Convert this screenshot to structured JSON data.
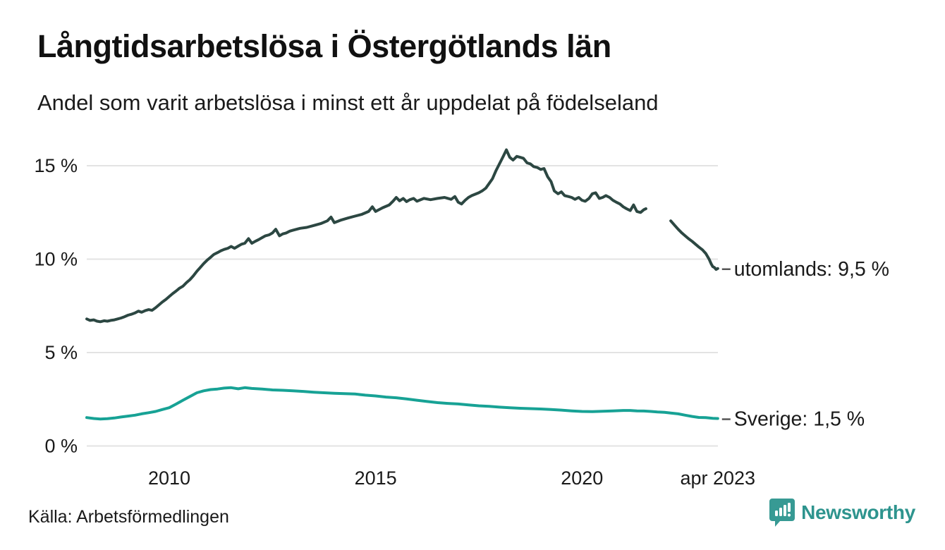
{
  "header": {
    "title": "Långtidsarbetslösa i Östergötlands län",
    "subtitle": "Andel som varit arbetslösa i minst ett år uppdelat på födelseland"
  },
  "footer": {
    "source": "Källa: Arbetsförmedlingen",
    "brand": "Newsworthy"
  },
  "colors": {
    "utomlands_line": "#2c4742",
    "sverige_line": "#17a295",
    "grid": "#e3e3e3",
    "axis_text": "#1a1a1a",
    "label_dash": "#555555",
    "brand_teal": "#379a94"
  },
  "chart_data": {
    "type": "line",
    "title": "Långtidsarbetslösa i Östergötlands län",
    "subtitle": "Andel som varit arbetslösa i minst ett år uppdelat på födelseland",
    "xlabel": "",
    "ylabel": "",
    "xlim": [
      2008.0,
      2023.33
    ],
    "ylim": [
      0,
      16.5
    ],
    "grid": true,
    "legend_position": "right-end-labels",
    "y_ticks": [
      {
        "value": 0,
        "label": "0 %"
      },
      {
        "value": 5,
        "label": "5 %"
      },
      {
        "value": 10,
        "label": "10 %"
      },
      {
        "value": 15,
        "label": "15 %"
      }
    ],
    "x_ticks": [
      {
        "t": 2010.0,
        "label": "2010"
      },
      {
        "t": 2015.0,
        "label": "2015"
      },
      {
        "t": 2020.0,
        "label": "2020"
      },
      {
        "t": 2023.29,
        "label": "apr 2023"
      }
    ],
    "series": [
      {
        "name": "utomlands",
        "end_label": "utomlands: 9,5 %",
        "end_value_pct": 9.5,
        "color": "#2c4742",
        "segments": [
          [
            [
              2008.0,
              6.8
            ],
            [
              2008.08,
              6.72
            ],
            [
              2008.17,
              6.75
            ],
            [
              2008.25,
              6.68
            ],
            [
              2008.33,
              6.65
            ],
            [
              2008.42,
              6.7
            ],
            [
              2008.5,
              6.68
            ],
            [
              2008.58,
              6.72
            ],
            [
              2008.67,
              6.75
            ],
            [
              2008.75,
              6.8
            ],
            [
              2008.83,
              6.85
            ],
            [
              2008.92,
              6.92
            ],
            [
              2009.0,
              7.0
            ],
            [
              2009.08,
              7.05
            ],
            [
              2009.17,
              7.12
            ],
            [
              2009.25,
              7.22
            ],
            [
              2009.33,
              7.16
            ],
            [
              2009.42,
              7.25
            ],
            [
              2009.5,
              7.3
            ],
            [
              2009.58,
              7.26
            ],
            [
              2009.67,
              7.4
            ],
            [
              2009.75,
              7.55
            ],
            [
              2009.83,
              7.7
            ],
            [
              2009.92,
              7.85
            ],
            [
              2010.0,
              8.0
            ],
            [
              2010.08,
              8.15
            ],
            [
              2010.17,
              8.3
            ],
            [
              2010.25,
              8.45
            ],
            [
              2010.33,
              8.55
            ],
            [
              2010.42,
              8.75
            ],
            [
              2010.5,
              8.9
            ],
            [
              2010.58,
              9.1
            ],
            [
              2010.67,
              9.35
            ],
            [
              2010.75,
              9.55
            ],
            [
              2010.83,
              9.75
            ],
            [
              2010.92,
              9.95
            ],
            [
              2011.0,
              10.1
            ],
            [
              2011.08,
              10.25
            ],
            [
              2011.17,
              10.35
            ],
            [
              2011.25,
              10.45
            ],
            [
              2011.33,
              10.52
            ],
            [
              2011.42,
              10.58
            ],
            [
              2011.5,
              10.68
            ],
            [
              2011.58,
              10.58
            ],
            [
              2011.67,
              10.7
            ],
            [
              2011.75,
              10.8
            ],
            [
              2011.83,
              10.85
            ],
            [
              2011.92,
              11.1
            ],
            [
              2012.0,
              10.85
            ],
            [
              2012.08,
              10.95
            ],
            [
              2012.17,
              11.05
            ],
            [
              2012.25,
              11.15
            ],
            [
              2012.33,
              11.25
            ],
            [
              2012.42,
              11.3
            ],
            [
              2012.5,
              11.4
            ],
            [
              2012.58,
              11.6
            ],
            [
              2012.67,
              11.25
            ],
            [
              2012.75,
              11.35
            ],
            [
              2012.83,
              11.4
            ],
            [
              2012.92,
              11.5
            ],
            [
              2013.0,
              11.55
            ],
            [
              2013.17,
              11.65
            ],
            [
              2013.33,
              11.7
            ],
            [
              2013.5,
              11.8
            ],
            [
              2013.67,
              11.9
            ],
            [
              2013.83,
              12.05
            ],
            [
              2013.92,
              12.25
            ],
            [
              2014.0,
              11.95
            ],
            [
              2014.17,
              12.1
            ],
            [
              2014.33,
              12.2
            ],
            [
              2014.5,
              12.3
            ],
            [
              2014.67,
              12.4
            ],
            [
              2014.83,
              12.55
            ],
            [
              2014.92,
              12.8
            ],
            [
              2015.0,
              12.55
            ],
            [
              2015.17,
              12.75
            ],
            [
              2015.33,
              12.9
            ],
            [
              2015.42,
              13.1
            ],
            [
              2015.5,
              13.3
            ],
            [
              2015.58,
              13.12
            ],
            [
              2015.67,
              13.25
            ],
            [
              2015.75,
              13.08
            ],
            [
              2015.83,
              13.18
            ],
            [
              2015.92,
              13.25
            ],
            [
              2016.0,
              13.1
            ],
            [
              2016.17,
              13.25
            ],
            [
              2016.33,
              13.18
            ],
            [
              2016.5,
              13.25
            ],
            [
              2016.67,
              13.3
            ],
            [
              2016.83,
              13.2
            ],
            [
              2016.92,
              13.35
            ],
            [
              2017.0,
              13.05
            ],
            [
              2017.08,
              12.95
            ],
            [
              2017.17,
              13.15
            ],
            [
              2017.25,
              13.3
            ],
            [
              2017.33,
              13.4
            ],
            [
              2017.5,
              13.55
            ],
            [
              2017.58,
              13.65
            ],
            [
              2017.67,
              13.8
            ],
            [
              2017.75,
              14.05
            ],
            [
              2017.83,
              14.3
            ],
            [
              2017.92,
              14.75
            ],
            [
              2018.0,
              15.1
            ],
            [
              2018.08,
              15.45
            ],
            [
              2018.17,
              15.85
            ],
            [
              2018.25,
              15.45
            ],
            [
              2018.33,
              15.3
            ],
            [
              2018.42,
              15.5
            ],
            [
              2018.5,
              15.45
            ],
            [
              2018.58,
              15.4
            ],
            [
              2018.67,
              15.15
            ],
            [
              2018.75,
              15.1
            ],
            [
              2018.83,
              14.95
            ],
            [
              2018.92,
              14.9
            ],
            [
              2019.0,
              14.8
            ],
            [
              2019.08,
              14.85
            ],
            [
              2019.17,
              14.4
            ],
            [
              2019.25,
              14.15
            ],
            [
              2019.33,
              13.65
            ],
            [
              2019.42,
              13.5
            ],
            [
              2019.5,
              13.6
            ],
            [
              2019.58,
              13.4
            ],
            [
              2019.67,
              13.35
            ],
            [
              2019.75,
              13.3
            ],
            [
              2019.83,
              13.2
            ],
            [
              2019.92,
              13.3
            ],
            [
              2020.0,
              13.15
            ],
            [
              2020.08,
              13.1
            ],
            [
              2020.17,
              13.25
            ],
            [
              2020.25,
              13.5
            ],
            [
              2020.33,
              13.55
            ],
            [
              2020.42,
              13.25
            ],
            [
              2020.5,
              13.3
            ],
            [
              2020.58,
              13.4
            ],
            [
              2020.67,
              13.3
            ],
            [
              2020.75,
              13.15
            ],
            [
              2020.83,
              13.05
            ],
            [
              2020.92,
              12.95
            ],
            [
              2021.0,
              12.8
            ],
            [
              2021.08,
              12.7
            ],
            [
              2021.17,
              12.6
            ],
            [
              2021.25,
              12.9
            ],
            [
              2021.33,
              12.55
            ],
            [
              2021.42,
              12.5
            ],
            [
              2021.5,
              12.65
            ],
            [
              2021.55,
              12.7
            ]
          ],
          [
            [
              2022.15,
              12.05
            ],
            [
              2022.25,
              11.8
            ],
            [
              2022.33,
              11.6
            ],
            [
              2022.42,
              11.4
            ],
            [
              2022.5,
              11.25
            ],
            [
              2022.58,
              11.1
            ],
            [
              2022.67,
              10.95
            ],
            [
              2022.75,
              10.8
            ],
            [
              2022.83,
              10.65
            ],
            [
              2022.92,
              10.5
            ],
            [
              2023.0,
              10.3
            ],
            [
              2023.08,
              10.0
            ],
            [
              2023.13,
              9.75
            ],
            [
              2023.17,
              9.6
            ],
            [
              2023.21,
              9.55
            ],
            [
              2023.25,
              9.45
            ],
            [
              2023.29,
              9.5
            ]
          ]
        ]
      },
      {
        "name": "Sverige",
        "end_label": "Sverige: 1,5 %",
        "end_value_pct": 1.5,
        "color": "#17a295",
        "segments": [
          [
            [
              2008.0,
              1.52
            ],
            [
              2008.17,
              1.47
            ],
            [
              2008.33,
              1.44
            ],
            [
              2008.5,
              1.46
            ],
            [
              2008.67,
              1.5
            ],
            [
              2008.83,
              1.55
            ],
            [
              2009.0,
              1.6
            ],
            [
              2009.17,
              1.65
            ],
            [
              2009.33,
              1.72
            ],
            [
              2009.5,
              1.78
            ],
            [
              2009.67,
              1.85
            ],
            [
              2009.83,
              1.95
            ],
            [
              2010.0,
              2.05
            ],
            [
              2010.17,
              2.25
            ],
            [
              2010.33,
              2.45
            ],
            [
              2010.5,
              2.65
            ],
            [
              2010.67,
              2.85
            ],
            [
              2010.83,
              2.95
            ],
            [
              2011.0,
              3.02
            ],
            [
              2011.17,
              3.05
            ],
            [
              2011.33,
              3.1
            ],
            [
              2011.5,
              3.12
            ],
            [
              2011.67,
              3.06
            ],
            [
              2011.83,
              3.12
            ],
            [
              2012.0,
              3.08
            ],
            [
              2012.25,
              3.05
            ],
            [
              2012.5,
              3.0
            ],
            [
              2012.75,
              2.98
            ],
            [
              2013.0,
              2.95
            ],
            [
              2013.25,
              2.92
            ],
            [
              2013.5,
              2.88
            ],
            [
              2013.75,
              2.85
            ],
            [
              2014.0,
              2.82
            ],
            [
              2014.25,
              2.8
            ],
            [
              2014.5,
              2.78
            ],
            [
              2014.75,
              2.72
            ],
            [
              2015.0,
              2.68
            ],
            [
              2015.25,
              2.62
            ],
            [
              2015.5,
              2.58
            ],
            [
              2015.75,
              2.52
            ],
            [
              2016.0,
              2.45
            ],
            [
              2016.25,
              2.38
            ],
            [
              2016.5,
              2.32
            ],
            [
              2016.75,
              2.28
            ],
            [
              2017.0,
              2.25
            ],
            [
              2017.25,
              2.2
            ],
            [
              2017.5,
              2.15
            ],
            [
              2017.75,
              2.12
            ],
            [
              2018.0,
              2.08
            ],
            [
              2018.25,
              2.05
            ],
            [
              2018.5,
              2.02
            ],
            [
              2018.75,
              2.0
            ],
            [
              2019.0,
              1.98
            ],
            [
              2019.25,
              1.95
            ],
            [
              2019.5,
              1.92
            ],
            [
              2019.75,
              1.88
            ],
            [
              2020.0,
              1.85
            ],
            [
              2020.25,
              1.84
            ],
            [
              2020.5,
              1.86
            ],
            [
              2020.75,
              1.88
            ],
            [
              2021.0,
              1.9
            ],
            [
              2021.17,
              1.9
            ],
            [
              2021.33,
              1.88
            ],
            [
              2021.5,
              1.87
            ],
            [
              2021.67,
              1.85
            ],
            [
              2021.83,
              1.82
            ],
            [
              2022.0,
              1.8
            ],
            [
              2022.17,
              1.76
            ],
            [
              2022.33,
              1.72
            ],
            [
              2022.5,
              1.65
            ],
            [
              2022.67,
              1.58
            ],
            [
              2022.83,
              1.53
            ],
            [
              2023.0,
              1.52
            ],
            [
              2023.17,
              1.48
            ],
            [
              2023.29,
              1.47
            ]
          ]
        ]
      }
    ]
  }
}
